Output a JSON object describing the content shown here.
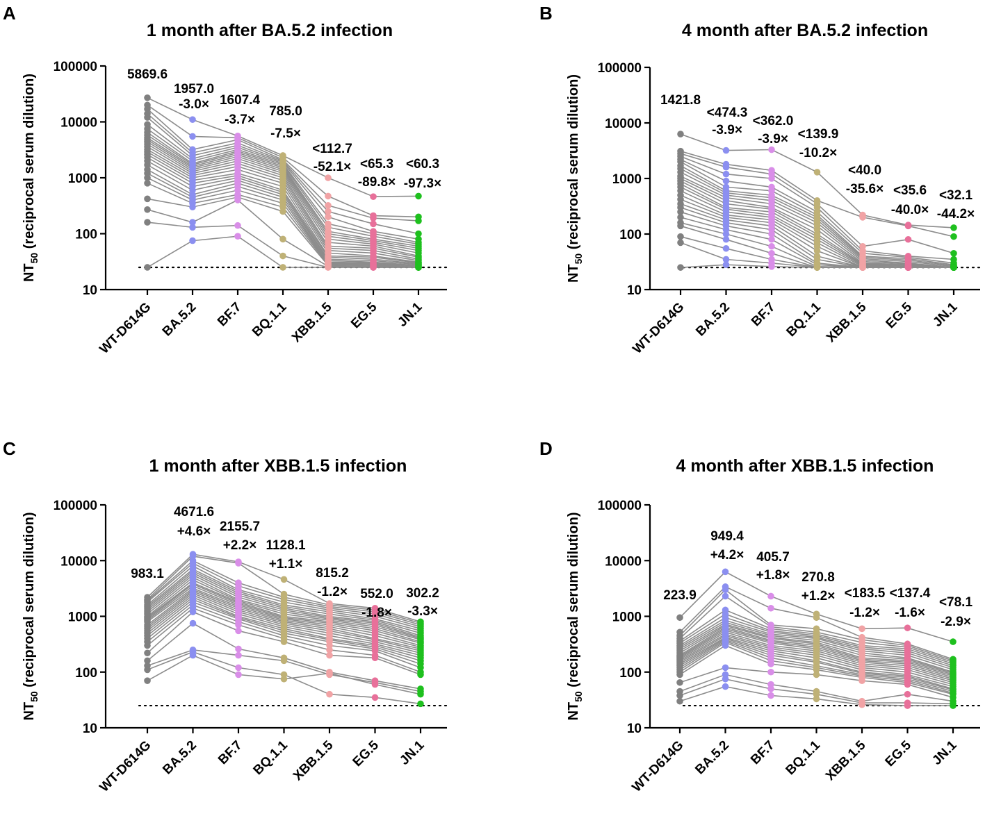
{
  "colors": {
    "line": "#8c8c8c",
    "categories": [
      "#808080",
      "#8b8ff0",
      "#d98ee8",
      "#bfb176",
      "#f1a3a5",
      "#e8709a",
      "#1ec01e"
    ]
  },
  "chart_data": [
    {
      "type": "scatter",
      "panel": "A",
      "title": "1 month after BA.5.2 infection",
      "ylabel": "NT50 (reciprocal serum dilution)",
      "ylabel_main": "NT",
      "ylabel_sub": "50",
      "ylabel_rest": " (reciprocal serum dilution)",
      "yscale": "log",
      "ylim": [
        10,
        100000
      ],
      "yticks": [
        "10",
        "100",
        "1000",
        "10000",
        "100000"
      ],
      "limit_of_detection": 25,
      "categories": [
        "WT-D614G",
        "BA.5.2",
        "BF.7",
        "BQ.1.1",
        "XBB.1.5",
        "EG.5",
        "JN.1"
      ],
      "annotations": [
        {
          "gmt": "5869.6",
          "fold": ""
        },
        {
          "gmt": "1957.0",
          "fold": "-3.0×"
        },
        {
          "gmt": "1607.4",
          "fold": "-3.7×"
        },
        {
          "gmt": "785.0",
          "fold": "-7.5×"
        },
        {
          "gmt": "<112.7",
          "fold": "-52.1×"
        },
        {
          "gmt": "<65.3",
          "fold": "-89.8×"
        },
        {
          "gmt": "<60.3",
          "fold": "-97.3×"
        }
      ],
      "subjects": [
        [
          27000,
          11000,
          5600,
          2500,
          1000,
          460,
          470
        ],
        [
          20000,
          5500,
          5200,
          2300,
          470,
          210,
          200
        ],
        [
          17000,
          3200,
          4800,
          2100,
          320,
          190,
          170
        ],
        [
          14000,
          2800,
          4200,
          2000,
          250,
          150,
          100
        ],
        [
          12000,
          2500,
          3800,
          1900,
          200,
          110,
          80
        ],
        [
          9000,
          2200,
          3500,
          1800,
          150,
          100,
          70
        ],
        [
          7500,
          2000,
          3200,
          1700,
          130,
          90,
          65
        ],
        [
          6500,
          1800,
          3000,
          1600,
          110,
          80,
          60
        ],
        [
          5800,
          1700,
          2800,
          1500,
          100,
          75,
          55
        ],
        [
          5200,
          1600,
          2600,
          1400,
          90,
          70,
          50
        ],
        [
          4800,
          1500,
          2400,
          1300,
          80,
          65,
          45
        ],
        [
          4400,
          1400,
          2200,
          1200,
          70,
          60,
          40
        ],
        [
          4000,
          1300,
          2000,
          1100,
          60,
          55,
          38
        ],
        [
          3600,
          1200,
          1800,
          1000,
          55,
          50,
          35
        ],
        [
          3200,
          1100,
          1600,
          900,
          50,
          45,
          33
        ],
        [
          2900,
          1000,
          1400,
          800,
          45,
          40,
          31
        ],
        [
          2600,
          900,
          1200,
          700,
          40,
          38,
          30
        ],
        [
          2300,
          800,
          1100,
          600,
          38,
          35,
          29
        ],
        [
          2000,
          700,
          1000,
          550,
          35,
          33,
          28
        ],
        [
          1700,
          600,
          900,
          500,
          33,
          31,
          27
        ],
        [
          1400,
          500,
          800,
          450,
          31,
          30,
          26
        ],
        [
          1200,
          450,
          700,
          400,
          30,
          29,
          25
        ],
        [
          1000,
          400,
          600,
          350,
          29,
          28,
          25
        ],
        [
          800,
          350,
          500,
          300,
          28,
          27,
          25
        ],
        [
          420,
          300,
          450,
          250,
          27,
          26,
          25
        ],
        [
          270,
          160,
          400,
          80,
          26,
          25,
          25
        ],
        [
          160,
          130,
          140,
          40,
          25,
          25,
          25
        ],
        [
          25,
          75,
          90,
          25,
          25,
          25,
          25
        ]
      ]
    },
    {
      "type": "scatter",
      "panel": "B",
      "title": "4 month after BA.5.2 infection",
      "ylabel": "NT50 (reciprocal serum dilution)",
      "ylabel_main": "NT",
      "ylabel_sub": "50",
      "ylabel_rest": " (reciprocal serum dilution)",
      "yscale": "log",
      "ylim": [
        10,
        100000
      ],
      "yticks": [
        "10",
        "100",
        "1000",
        "10000",
        "100000"
      ],
      "limit_of_detection": 25,
      "categories": [
        "WT-D614G",
        "BA.5.2",
        "BF.7",
        "BQ.1.1",
        "XBB.1.5",
        "EG.5",
        "JN.1"
      ],
      "annotations": [
        {
          "gmt": "1421.8",
          "fold": ""
        },
        {
          "gmt": "<474.3",
          "fold": "-3.9×"
        },
        {
          "gmt": "<362.0",
          "fold": "-3.9×"
        },
        {
          "gmt": "<139.9",
          "fold": "-10.2×"
        },
        {
          "gmt": "<40.0",
          "fold": "-35.6×"
        },
        {
          "gmt": "<35.6",
          "fold": "-40.0×"
        },
        {
          "gmt": "<32.1",
          "fold": "-44.2×"
        }
      ],
      "subjects": [
        [
          6300,
          3200,
          3300,
          1300,
          220,
          145,
          130
        ],
        [
          3100,
          1800,
          1400,
          400,
          200,
          140,
          90
        ],
        [
          2800,
          1600,
          1200,
          350,
          60,
          80,
          45
        ],
        [
          2500,
          1200,
          1000,
          300,
          50,
          40,
          35
        ],
        [
          2200,
          900,
          700,
          250,
          45,
          38,
          30
        ],
        [
          2000,
          700,
          600,
          220,
          40,
          36,
          28
        ],
        [
          1700,
          600,
          500,
          200,
          38,
          34,
          27
        ],
        [
          1500,
          550,
          450,
          180,
          36,
          32,
          26
        ],
        [
          1300,
          500,
          400,
          160,
          34,
          30,
          25
        ],
        [
          1100,
          450,
          350,
          140,
          32,
          29,
          25
        ],
        [
          1000,
          400,
          300,
          120,
          30,
          28,
          25
        ],
        [
          900,
          350,
          280,
          100,
          29,
          27,
          25
        ],
        [
          800,
          300,
          250,
          90,
          28,
          26,
          25
        ],
        [
          700,
          280,
          220,
          80,
          27,
          25,
          25
        ],
        [
          600,
          250,
          200,
          70,
          26,
          25,
          25
        ],
        [
          500,
          220,
          180,
          60,
          25,
          25,
          25
        ],
        [
          420,
          200,
          160,
          50,
          25,
          25,
          25
        ],
        [
          350,
          180,
          140,
          40,
          25,
          25,
          25
        ],
        [
          300,
          160,
          120,
          35,
          25,
          25,
          25
        ],
        [
          250,
          140,
          100,
          30,
          25,
          25,
          25
        ],
        [
          200,
          120,
          80,
          28,
          25,
          25,
          25
        ],
        [
          160,
          100,
          60,
          26,
          25,
          25,
          25
        ],
        [
          140,
          80,
          45,
          25,
          25,
          25,
          25
        ],
        [
          90,
          55,
          35,
          25,
          25,
          25,
          25
        ],
        [
          70,
          35,
          30,
          25,
          25,
          25,
          25
        ],
        [
          25,
          28,
          26,
          25,
          25,
          25,
          25
        ]
      ]
    },
    {
      "type": "scatter",
      "panel": "C",
      "title": "1 month after XBB.1.5  infection",
      "ylabel": "NT50 (reciprocal serum dilution)",
      "ylabel_main": "NT",
      "ylabel_sub": "50",
      "ylabel_rest": " (reciprocal serum dilution)",
      "yscale": "log",
      "ylim": [
        10,
        100000
      ],
      "yticks": [
        "10",
        "100",
        "1000",
        "10000",
        "100000"
      ],
      "limit_of_detection": 25,
      "categories": [
        "WT-D614G",
        "BA.5.2",
        "BF.7",
        "BQ.1.1",
        "XBB.1.5",
        "EG.5",
        "JN.1"
      ],
      "annotations": [
        {
          "gmt": "983.1",
          "fold": ""
        },
        {
          "gmt": "4671.6",
          "fold": "+4.6×"
        },
        {
          "gmt": "2155.7",
          "fold": "+2.2×"
        },
        {
          "gmt": "1128.1",
          "fold": "+1.1×"
        },
        {
          "gmt": "815.2",
          "fold": "-1.2×"
        },
        {
          "gmt": "552.0",
          "fold": "-1.8×"
        },
        {
          "gmt": "302.2",
          "fold": "-3.3×"
        }
      ],
      "subjects": [
        [
          2200,
          13000,
          9500,
          4600,
          1700,
          1400,
          800
        ],
        [
          2000,
          12000,
          9000,
          2500,
          1600,
          1300,
          750
        ],
        [
          1900,
          10000,
          4000,
          2200,
          1500,
          1200,
          700
        ],
        [
          1800,
          9000,
          3500,
          2000,
          1400,
          1100,
          650
        ],
        [
          1600,
          8000,
          3000,
          1800,
          1300,
          1000,
          600
        ],
        [
          1500,
          7000,
          2800,
          1600,
          1200,
          900,
          550
        ],
        [
          1400,
          6500,
          2600,
          1500,
          1100,
          850,
          500
        ],
        [
          1300,
          6000,
          2400,
          1400,
          1000,
          800,
          450
        ],
        [
          1200,
          5500,
          2200,
          1300,
          950,
          750,
          420
        ],
        [
          1100,
          5000,
          2000,
          1200,
          900,
          700,
          400
        ],
        [
          1000,
          4500,
          1900,
          1100,
          850,
          650,
          380
        ],
        [
          950,
          4000,
          1800,
          1000,
          800,
          600,
          350
        ],
        [
          900,
          3800,
          1700,
          950,
          750,
          550,
          330
        ],
        [
          850,
          3500,
          1600,
          900,
          700,
          500,
          300
        ],
        [
          800,
          3200,
          1500,
          850,
          650,
          450,
          280
        ],
        [
          700,
          3000,
          1400,
          800,
          600,
          400,
          260
        ],
        [
          650,
          2800,
          1300,
          750,
          550,
          380,
          240
        ],
        [
          600,
          2600,
          1200,
          700,
          500,
          350,
          220
        ],
        [
          550,
          2400,
          1100,
          650,
          450,
          320,
          200
        ],
        [
          500,
          2200,
          1000,
          600,
          400,
          300,
          180
        ],
        [
          450,
          2000,
          950,
          550,
          380,
          280,
          160
        ],
        [
          400,
          1800,
          900,
          500,
          350,
          260,
          140
        ],
        [
          350,
          1600,
          800,
          450,
          300,
          240,
          120
        ],
        [
          300,
          1400,
          700,
          400,
          250,
          200,
          100
        ],
        [
          220,
          1200,
          550,
          350,
          200,
          180,
          90
        ],
        [
          160,
          750,
          260,
          180,
          100,
          70,
          50
        ],
        [
          130,
          250,
          200,
          160,
          90,
          65,
          45
        ],
        [
          110,
          230,
          120,
          90,
          40,
          35,
          27
        ],
        [
          70,
          200,
          90,
          75,
          95,
          60,
          40
        ]
      ]
    },
    {
      "type": "scatter",
      "panel": "D",
      "title": "4 month after XBB.1.5  infection",
      "ylabel": "NT50 (reciprocal serum dilution)",
      "ylabel_main": "NT",
      "ylabel_sub": "50",
      "ylabel_rest": " (reciprocal serum dilution)",
      "yscale": "log",
      "ylim": [
        10,
        100000
      ],
      "yticks": [
        "10",
        "100",
        "1000",
        "10000",
        "100000"
      ],
      "limit_of_detection": 25,
      "categories": [
        "WT-D614G",
        "BA.5.2",
        "BF.7",
        "BQ.1.1",
        "XBB.1.5",
        "EG.5",
        "JN.1"
      ],
      "annotations": [
        {
          "gmt": "223.9",
          "fold": ""
        },
        {
          "gmt": "949.4",
          "fold": "+4.2×"
        },
        {
          "gmt": "405.7",
          "fold": "+1.8×"
        },
        {
          "gmt": "270.8",
          "fold": "+1.2×"
        },
        {
          "gmt": "<183.5",
          "fold": "-1.2×"
        },
        {
          "gmt": "<137.4",
          "fold": "-1.6×"
        },
        {
          "gmt": "<78.1",
          "fold": "-2.9×"
        }
      ],
      "subjects": [
        [
          950,
          6300,
          2300,
          1100,
          600,
          620,
          350
        ],
        [
          520,
          3400,
          1400,
          950,
          420,
          320,
          170
        ],
        [
          450,
          3000,
          700,
          600,
          380,
          300,
          160
        ],
        [
          400,
          2300,
          650,
          520,
          340,
          280,
          150
        ],
        [
          360,
          1300,
          600,
          480,
          300,
          260,
          140
        ],
        [
          330,
          1100,
          550,
          450,
          280,
          240,
          130
        ],
        [
          300,
          950,
          520,
          420,
          260,
          220,
          120
        ],
        [
          280,
          850,
          480,
          400,
          240,
          200,
          110
        ],
        [
          260,
          780,
          450,
          370,
          220,
          180,
          100
        ],
        [
          240,
          720,
          420,
          340,
          200,
          170,
          95
        ],
        [
          220,
          680,
          400,
          320,
          180,
          160,
          90
        ],
        [
          200,
          640,
          370,
          300,
          170,
          150,
          85
        ],
        [
          190,
          600,
          350,
          280,
          160,
          140,
          80
        ],
        [
          180,
          560,
          330,
          260,
          150,
          130,
          75
        ],
        [
          170,
          520,
          300,
          240,
          140,
          120,
          70
        ],
        [
          160,
          480,
          280,
          220,
          130,
          110,
          65
        ],
        [
          150,
          450,
          260,
          200,
          120,
          100,
          60
        ],
        [
          140,
          420,
          240,
          180,
          110,
          90,
          55
        ],
        [
          130,
          400,
          220,
          160,
          100,
          85,
          50
        ],
        [
          120,
          380,
          200,
          150,
          95,
          80,
          48
        ],
        [
          110,
          360,
          180,
          130,
          90,
          75,
          45
        ],
        [
          100,
          340,
          160,
          120,
          85,
          70,
          42
        ],
        [
          90,
          300,
          140,
          110,
          80,
          65,
          40
        ],
        [
          65,
          120,
          100,
          90,
          70,
          60,
          35
        ],
        [
          45,
          90,
          60,
          45,
          30,
          40,
          30
        ],
        [
          38,
          75,
          50,
          40,
          28,
          28,
          27
        ],
        [
          30,
          55,
          38,
          33,
          26,
          25,
          25
        ]
      ]
    }
  ]
}
